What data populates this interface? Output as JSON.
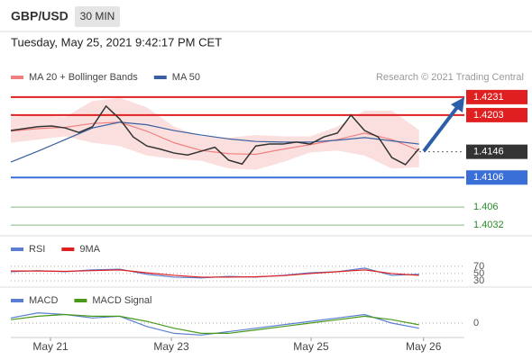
{
  "header": {
    "symbol": "GBP/USD",
    "timeframe": "30 MIN",
    "timestamp": "Tuesday, May 25, 2021 9:42:17 PM CET",
    "credit": "Research © 2021 Trading Central"
  },
  "chart_data": [
    {
      "type": "line",
      "panel": "price",
      "ylim": [
        1.4021,
        1.4249
      ],
      "xlim": [
        0,
        100
      ],
      "price": {
        "color": "#333333",
        "x": [
          0,
          3,
          6,
          9,
          12,
          15,
          18,
          21,
          24,
          27,
          30,
          33,
          36,
          39,
          42,
          45,
          48,
          51,
          54,
          57,
          60,
          63,
          66,
          69,
          72,
          75,
          78,
          81,
          84,
          87,
          90
        ],
        "values": [
          1.4179,
          1.4182,
          1.4185,
          1.4186,
          1.4183,
          1.4176,
          1.4185,
          1.4217,
          1.4197,
          1.4169,
          1.4155,
          1.415,
          1.4144,
          1.4141,
          1.4147,
          1.4153,
          1.4133,
          1.4127,
          1.4155,
          1.4158,
          1.4158,
          1.4161,
          1.4158,
          1.4169,
          1.4175,
          1.4203,
          1.4179,
          1.4169,
          1.4137,
          1.4126,
          1.4151
        ]
      },
      "series": [
        {
          "name": "MA 20 + Bollinger Bands",
          "color": "#f08080",
          "x": [
            0,
            6,
            12,
            18,
            24,
            30,
            36,
            42,
            48,
            54,
            60,
            66,
            72,
            78,
            84,
            90
          ],
          "values": [
            1.4178,
            1.4182,
            1.4184,
            1.419,
            1.4192,
            1.4178,
            1.416,
            1.4148,
            1.4143,
            1.4142,
            1.415,
            1.4157,
            1.4165,
            1.4175,
            1.4165,
            1.4148
          ],
          "upper": [
            1.42,
            1.4203,
            1.42,
            1.4225,
            1.423,
            1.4215,
            1.4185,
            1.417,
            1.4168,
            1.4172,
            1.417,
            1.417,
            1.4185,
            1.421,
            1.421,
            1.418
          ],
          "lower": [
            1.416,
            1.4165,
            1.417,
            1.416,
            1.4155,
            1.414,
            1.4135,
            1.4132,
            1.412,
            1.4118,
            1.413,
            1.4145,
            1.4148,
            1.414,
            1.412,
            1.4122
          ]
        },
        {
          "name": "MA 50",
          "color": "#3a5fa0",
          "x": [
            0,
            6,
            12,
            18,
            24,
            30,
            36,
            42,
            48,
            54,
            60,
            66,
            72,
            78,
            84,
            90
          ],
          "values": [
            1.413,
            1.4147,
            1.4165,
            1.4183,
            1.4192,
            1.4188,
            1.4179,
            1.4172,
            1.4166,
            1.4162,
            1.4161,
            1.4161,
            1.4164,
            1.4168,
            1.4163,
            1.4158
          ]
        }
      ],
      "levels": [
        {
          "value": 1.4231,
          "color": "#e02020",
          "label_style": "box",
          "line": "solid"
        },
        {
          "value": 1.4203,
          "color": "#e02020",
          "label_style": "box",
          "line": "solid"
        },
        {
          "value": 1.4146,
          "color": "#333333",
          "label_style": "box",
          "line": "dotted"
        },
        {
          "value": 1.4106,
          "color": "#3a6fd8",
          "label_style": "box",
          "line": "solid"
        },
        {
          "value": 1.406,
          "color": "#2a8a2a",
          "label_style": "text",
          "line": "solid"
        },
        {
          "value": 1.4032,
          "color": "#2a8a2a",
          "label_style": "text",
          "line": "solid"
        }
      ]
    },
    {
      "type": "line",
      "panel": "rsi",
      "ylim": [
        15,
        97
      ],
      "xlim": [
        0,
        100
      ],
      "yticks": [
        70,
        50,
        30
      ],
      "series": [
        {
          "name": "RSI",
          "color": "#5a7fd0",
          "x": [
            0,
            6,
            12,
            18,
            24,
            30,
            36,
            42,
            48,
            54,
            60,
            66,
            72,
            78,
            84,
            90
          ],
          "values": [
            55,
            58,
            55,
            60,
            62,
            48,
            40,
            38,
            42,
            40,
            45,
            52,
            55,
            65,
            45,
            48
          ]
        },
        {
          "name": "9MA",
          "color": "#e02020",
          "x": [
            0,
            6,
            12,
            18,
            24,
            30,
            36,
            42,
            48,
            54,
            60,
            66,
            72,
            78,
            84,
            90
          ],
          "values": [
            57,
            57,
            56,
            58,
            60,
            52,
            45,
            40,
            40,
            41,
            44,
            50,
            55,
            60,
            50,
            45
          ]
        }
      ]
    },
    {
      "type": "line",
      "panel": "macd",
      "ylim": [
        -1,
        1
      ],
      "xlim": [
        0,
        100
      ],
      "yticks": [
        0
      ],
      "xticks": [
        {
          "value": 8.75,
          "label": "May 21"
        },
        {
          "value": 35.4,
          "label": "May 23"
        },
        {
          "value": 66.2,
          "label": "May 25"
        },
        {
          "value": 91,
          "label": "May 26"
        }
      ],
      "series": [
        {
          "name": "MACD",
          "color": "#5a7fd0",
          "x": [
            0,
            6,
            12,
            18,
            24,
            30,
            36,
            42,
            48,
            54,
            60,
            66,
            72,
            78,
            84,
            90
          ],
          "values": [
            0.3,
            0.6,
            0.5,
            0.3,
            0.4,
            -0.2,
            -0.6,
            -0.7,
            -0.5,
            -0.3,
            -0.1,
            0.1,
            0.3,
            0.5,
            0.0,
            -0.3
          ]
        },
        {
          "name": "MACD Signal",
          "color": "#4a9a1a",
          "x": [
            0,
            6,
            12,
            18,
            24,
            30,
            36,
            42,
            48,
            54,
            60,
            66,
            72,
            78,
            84,
            90
          ],
          "values": [
            0.2,
            0.4,
            0.5,
            0.4,
            0.4,
            0.1,
            -0.3,
            -0.6,
            -0.6,
            -0.4,
            -0.2,
            0.0,
            0.2,
            0.4,
            0.2,
            -0.1
          ]
        }
      ]
    }
  ]
}
